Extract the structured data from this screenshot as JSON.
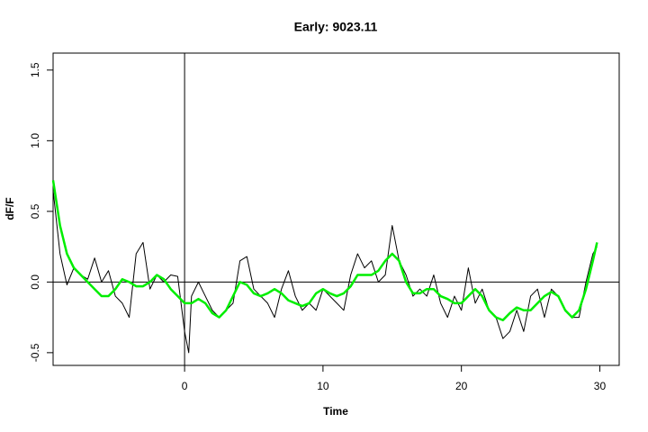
{
  "chart_data": {
    "type": "line",
    "title": "Early: 9023.11",
    "x_label": "Time",
    "y_label": "dF/F",
    "x": [
      -9.5,
      -9,
      -8.5,
      -8,
      -7.5,
      -7,
      -6.5,
      -6,
      -5.5,
      -5,
      -4.5,
      -4,
      -3.5,
      -3,
      -2.5,
      -2,
      -1.5,
      -1,
      -0.5,
      0,
      0.3,
      0.5,
      1,
      1.5,
      2,
      2.5,
      3,
      3.5,
      4,
      4.5,
      5,
      5.5,
      6,
      6.5,
      7,
      7.5,
      8,
      8.5,
      9,
      9.5,
      10,
      10.5,
      11,
      11.5,
      12,
      12.5,
      13,
      13.5,
      14,
      14.5,
      15,
      15.5,
      16,
      16.5,
      17,
      17.5,
      18,
      18.5,
      19,
      19.5,
      20,
      20.5,
      21,
      21.5,
      22,
      22.5,
      23,
      23.5,
      24,
      24.5,
      25,
      25.5,
      26,
      26.5,
      27,
      27.5,
      28,
      28.5,
      29,
      29.5,
      29.8
    ],
    "series": [
      {
        "color": "#000000",
        "values": [
          0.65,
          0.2,
          -0.02,
          0.1,
          0.05,
          0.02,
          0.17,
          0.0,
          0.08,
          -0.1,
          -0.15,
          -0.25,
          0.2,
          0.28,
          -0.05,
          0.05,
          0.0,
          0.05,
          0.04,
          -0.35,
          -0.5,
          -0.1,
          0.0,
          -0.1,
          -0.2,
          -0.25,
          -0.2,
          -0.15,
          0.15,
          0.18,
          -0.05,
          -0.1,
          -0.15,
          -0.25,
          -0.05,
          0.08,
          -0.1,
          -0.2,
          -0.15,
          -0.2,
          -0.05,
          -0.1,
          -0.15,
          -0.2,
          0.05,
          0.2,
          0.1,
          0.15,
          0.0,
          0.05,
          0.4,
          0.15,
          0.05,
          -0.1,
          -0.05,
          -0.1,
          0.05,
          -0.15,
          -0.25,
          -0.1,
          -0.2,
          0.1,
          -0.15,
          -0.05,
          -0.2,
          -0.25,
          -0.4,
          -0.35,
          -0.2,
          -0.35,
          -0.1,
          -0.05,
          -0.25,
          -0.05,
          -0.1,
          -0.2,
          -0.25,
          -0.25,
          0.0,
          0.2,
          0.25
        ]
      },
      {
        "color": "#00ee00",
        "values": [
          0.72,
          0.4,
          0.2,
          0.1,
          0.05,
          0.0,
          -0.05,
          -0.1,
          -0.1,
          -0.05,
          0.02,
          0.0,
          -0.03,
          -0.03,
          0.0,
          0.05,
          0.02,
          -0.05,
          -0.1,
          -0.15,
          -0.15,
          -0.15,
          -0.12,
          -0.15,
          -0.22,
          -0.25,
          -0.2,
          -0.1,
          0.0,
          -0.02,
          -0.08,
          -0.1,
          -0.08,
          -0.05,
          -0.08,
          -0.13,
          -0.15,
          -0.17,
          -0.15,
          -0.08,
          -0.05,
          -0.08,
          -0.1,
          -0.08,
          -0.03,
          0.05,
          0.05,
          0.05,
          0.08,
          0.15,
          0.2,
          0.15,
          0.0,
          -0.08,
          -0.08,
          -0.05,
          -0.05,
          -0.1,
          -0.12,
          -0.15,
          -0.15,
          -0.1,
          -0.05,
          -0.1,
          -0.2,
          -0.25,
          -0.27,
          -0.22,
          -0.18,
          -0.2,
          -0.2,
          -0.15,
          -0.1,
          -0.07,
          -0.1,
          -0.2,
          -0.25,
          -0.2,
          -0.05,
          0.15,
          0.28
        ]
      }
    ],
    "xlim": [
      -9.5,
      31.4
    ],
    "ylim": [
      -0.59,
      1.62
    ],
    "xticks": [
      0,
      10,
      20,
      30
    ],
    "yticks": [
      -0.5,
      {
        "value": 0,
        "label": "0.0"
      },
      0.5,
      {
        "value": 1,
        "label": "1.0"
      },
      1.5
    ],
    "vline": 0,
    "hline": 0
  }
}
